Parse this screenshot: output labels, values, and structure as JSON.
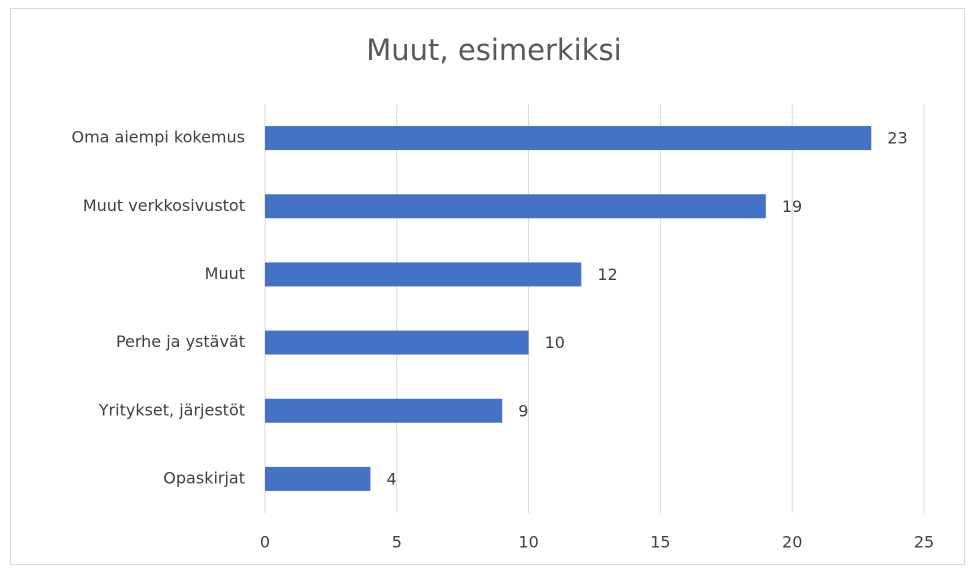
{
  "chart_data": {
    "type": "bar",
    "title": "Muut, esimerkiksi",
    "categories": [
      "Oma aiempi kokemus",
      "Muut verkkosivustot",
      "Muut",
      "Perhe ja ystävät",
      "Yritykset, järjestöt",
      "Opaskirjat"
    ],
    "values": [
      23,
      19,
      12,
      10,
      9,
      4
    ],
    "color": "#4472c4",
    "xlim": [
      0,
      25
    ],
    "xticks": [
      0,
      5,
      10,
      15,
      20,
      25
    ],
    "grid": true
  }
}
